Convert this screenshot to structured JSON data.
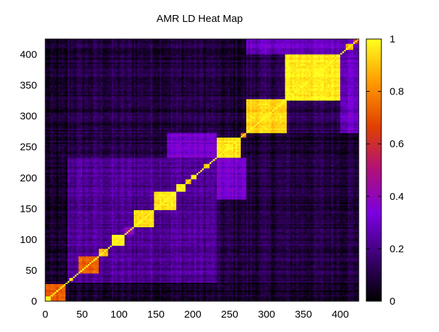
{
  "chart_data": {
    "type": "heatmap",
    "title": "AMR LD Heat Map",
    "xlabel": "",
    "ylabel": "",
    "xlim": [
      0,
      425
    ],
    "ylim": [
      0,
      425
    ],
    "x_ticks": [
      "0",
      "50",
      "100",
      "150",
      "200",
      "250",
      "300",
      "350",
      "400"
    ],
    "y_ticks": [
      "0",
      "50",
      "100",
      "150",
      "200",
      "250",
      "300",
      "350",
      "400"
    ],
    "colorbar": {
      "range": [
        0,
        1
      ],
      "ticks": [
        "0",
        "0.2",
        "0.4",
        "0.6",
        "0.8",
        "1"
      ],
      "palette": [
        "#000000",
        "#3a0070",
        "#7a00e0",
        "#b0107a",
        "#e04000",
        "#ff9a00",
        "#ffff20"
      ]
    },
    "grid": false,
    "background_ld": 0.07,
    "blocks": [
      {
        "start": 0,
        "end": 8,
        "value": 1.0
      },
      {
        "start": 8,
        "end": 28,
        "value": 0.7
      },
      {
        "start": 32,
        "end": 38,
        "value": 0.9
      },
      {
        "start": 46,
        "end": 72,
        "value": 0.72
      },
      {
        "start": 72,
        "end": 86,
        "value": 0.9
      },
      {
        "start": 90,
        "end": 108,
        "value": 0.97
      },
      {
        "start": 108,
        "end": 120,
        "value": 0.4
      },
      {
        "start": 120,
        "end": 148,
        "value": 0.95
      },
      {
        "start": 148,
        "end": 178,
        "value": 0.97
      },
      {
        "start": 178,
        "end": 190,
        "value": 1.0
      },
      {
        "start": 190,
        "end": 198,
        "value": 0.85
      },
      {
        "start": 198,
        "end": 206,
        "value": 0.95
      },
      {
        "start": 214,
        "end": 222,
        "value": 0.9
      },
      {
        "start": 232,
        "end": 264,
        "value": 0.95
      },
      {
        "start": 264,
        "end": 272,
        "value": 0.75
      },
      {
        "start": 272,
        "end": 328,
        "value": 0.93
      },
      {
        "start": 326,
        "end": 400,
        "value": 0.97
      },
      {
        "start": 408,
        "end": 418,
        "value": 0.85
      },
      {
        "start": 418,
        "end": 425,
        "value": 0.65
      }
    ],
    "cross_blocks": [
      {
        "x": [
          8,
          28
        ],
        "y": [
          0,
          8
        ],
        "value": 0.7
      },
      {
        "x": [
          46,
          72
        ],
        "y": [
          72,
          86
        ],
        "value": 0.45
      },
      {
        "x": [
          90,
          108
        ],
        "y": [
          108,
          120
        ],
        "value": 0.45
      },
      {
        "x": [
          120,
          148
        ],
        "y": [
          148,
          178
        ],
        "value": 0.72
      },
      {
        "x": [
          148,
          178
        ],
        "y": [
          120,
          148
        ],
        "value": 0.72
      },
      {
        "x": [
          148,
          178
        ],
        "y": [
          178,
          190
        ],
        "value": 0.5
      },
      {
        "x": [
          30,
          232
        ],
        "y": [
          30,
          232
        ],
        "value": 0.22
      },
      {
        "x": [
          232,
          425
        ],
        "y": [
          30,
          232
        ],
        "value": 0.1
      },
      {
        "x": [
          30,
          232
        ],
        "y": [
          232,
          425
        ],
        "value": 0.1
      },
      {
        "x": [
          272,
          328
        ],
        "y": [
          326,
          400
        ],
        "value": 0.12
      },
      {
        "x": [
          326,
          400
        ],
        "y": [
          272,
          328
        ],
        "value": 0.12
      },
      {
        "x": [
          232,
          272
        ],
        "y": [
          164,
          232
        ],
        "value": 0.32
      },
      {
        "x": [
          164,
          232
        ],
        "y": [
          232,
          272
        ],
        "value": 0.32
      },
      {
        "x": [
          400,
          425
        ],
        "y": [
          272,
          425
        ],
        "value": 0.3
      },
      {
        "x": [
          272,
          425
        ],
        "y": [
          400,
          425
        ],
        "value": 0.3
      },
      {
        "x": [
          0,
          30
        ],
        "y": [
          30,
          425
        ],
        "value": 0.05
      },
      {
        "x": [
          30,
          425
        ],
        "y": [
          0,
          30
        ],
        "value": 0.05
      }
    ]
  }
}
